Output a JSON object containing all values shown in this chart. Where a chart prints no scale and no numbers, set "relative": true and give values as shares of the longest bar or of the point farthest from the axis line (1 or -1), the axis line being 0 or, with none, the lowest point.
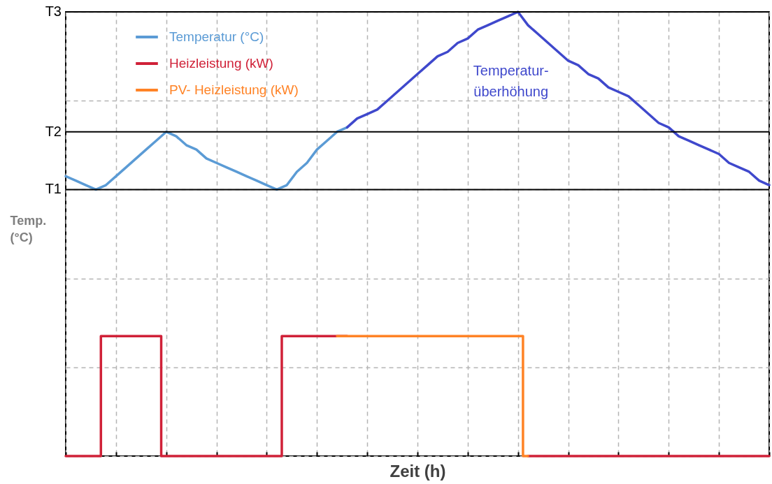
{
  "chart_data": {
    "type": "line",
    "relative": true,
    "xlabel": "Zeit (h)",
    "ylabel": "Temp.\n(°C)",
    "categories": [
      null,
      null,
      null,
      null,
      null,
      null,
      null,
      null,
      null,
      null,
      null,
      null,
      null,
      null,
      null,
      null,
      null,
      null,
      null,
      null,
      null,
      null,
      null,
      null,
      null,
      null,
      null,
      null,
      null,
      null,
      null,
      null,
      null,
      null,
      null,
      null,
      null,
      null,
      null,
      null,
      null,
      null,
      null,
      null,
      null,
      null,
      null,
      null,
      null,
      null,
      null,
      null,
      null,
      null,
      null,
      null,
      null,
      null,
      null,
      null,
      null,
      null,
      null,
      null,
      null,
      null,
      null,
      null,
      null,
      null,
      null
    ],
    "grid": true,
    "legend": "top left",
    "line_style": "solid",
    "ref_lines": [
      {
        "axis": "y",
        "value": 0.6,
        "label": "T1",
        "color": "#000000"
      },
      {
        "axis": "y",
        "value": 0.73,
        "label": "T2",
        "color": "#000000"
      },
      {
        "axis": "y",
        "value": 1,
        "label": "T3",
        "color": "#000000"
      }
    ],
    "annotations": [
      "Temperatur-\nüberhöhung"
    ],
    "series": [
      {
        "name": "Temperatur (°C)",
        "color": "#5b9bd5",
        "values": [
          0.63,
          0.62,
          0.61,
          0.6,
          0.61,
          0.63,
          0.65,
          0.67,
          0.69,
          0.71,
          0.73,
          0.72,
          0.7,
          0.69,
          0.67,
          0.66,
          0.65,
          0.64,
          0.63,
          0.62,
          0.61,
          0.6,
          0.61,
          0.64,
          0.66,
          0.69,
          0.71,
          0.73,
          0.74,
          null,
          null,
          null,
          null,
          null,
          null,
          null,
          null,
          null,
          null,
          null,
          null,
          null,
          null,
          null,
          null,
          null,
          null,
          null,
          null,
          null,
          null,
          null,
          null,
          null,
          null,
          null,
          null,
          null,
          null,
          null,
          null,
          null,
          null,
          null,
          null,
          null,
          null,
          null,
          null,
          null,
          null
        ]
      },
      {
        "color": "#3f48cc",
        "values": [
          null,
          null,
          null,
          null,
          null,
          null,
          null,
          null,
          null,
          null,
          null,
          null,
          null,
          null,
          null,
          null,
          null,
          null,
          null,
          null,
          null,
          null,
          null,
          null,
          null,
          null,
          null,
          null,
          0.74,
          0.76,
          0.77,
          0.78,
          0.8,
          0.82,
          0.84,
          0.86,
          0.88,
          0.9,
          0.91,
          0.93,
          0.94,
          0.96,
          0.97,
          0.98,
          0.99,
          1,
          0.97,
          0.95,
          0.93,
          0.91,
          0.89,
          0.88,
          0.86,
          0.85,
          0.83,
          0.82,
          0.81,
          0.79,
          0.77,
          0.75,
          0.74,
          0.72,
          0.71,
          0.7,
          0.69,
          0.68,
          0.66,
          0.65,
          0.64,
          0.62,
          0.61
        ]
      },
      {
        "name": "Heizleistung (kW)",
        "type": "step",
        "color": "#d02138",
        "values": [
          0,
          0,
          0,
          0,
          0.27,
          0.27,
          0.27,
          0.27,
          0.27,
          0.27,
          0,
          0,
          0,
          0,
          0,
          0,
          0,
          0,
          0,
          0,
          0,
          0,
          0.27,
          0.27,
          0.27,
          0.27,
          0.27,
          0.27,
          0.27,
          null,
          null,
          null,
          null,
          null,
          null,
          null,
          null,
          null,
          null,
          null,
          null,
          null,
          null,
          null,
          null,
          null,
          0,
          0,
          0,
          0,
          0,
          0,
          0,
          0,
          0,
          0,
          0,
          0,
          0,
          0,
          0,
          0,
          0,
          0,
          0,
          0,
          0,
          0,
          0,
          0,
          0
        ]
      },
      {
        "name": "PV- Heizleistung (kW)",
        "type": "step",
        "color": "#ff8326",
        "values": [
          null,
          null,
          null,
          null,
          null,
          null,
          null,
          null,
          null,
          null,
          null,
          null,
          null,
          null,
          null,
          null,
          null,
          null,
          null,
          null,
          null,
          null,
          null,
          null,
          null,
          null,
          null,
          0.27,
          0.27,
          0.27,
          0.27,
          0.27,
          0.27,
          0.27,
          0.27,
          0.27,
          0.27,
          0.27,
          0.27,
          0.27,
          0.27,
          0.27,
          0.27,
          0.27,
          0.27,
          0.27,
          0,
          null,
          null,
          null,
          null,
          null,
          null,
          null,
          null,
          null,
          null,
          null,
          null,
          null,
          null,
          null,
          null,
          null,
          null,
          null,
          null,
          null,
          null,
          null,
          null
        ]
      }
    ]
  }
}
